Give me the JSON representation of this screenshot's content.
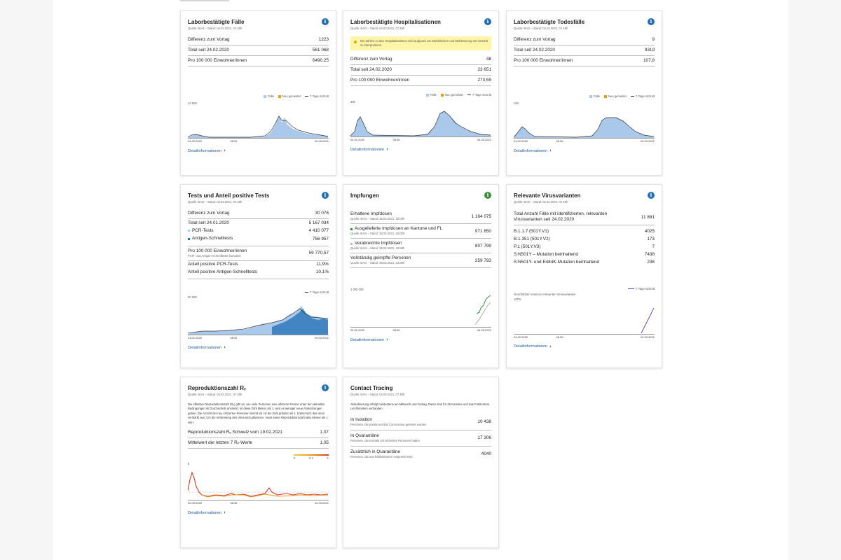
{
  "cards": {
    "cases": {
      "title": "Laborbestätigte Fälle",
      "source": "Quelle: BAG – Stand: 04.03.2021, 07.48h",
      "rows": [
        {
          "label": "Differenz zum Vortag",
          "value": "1223"
        },
        {
          "label": "Total seit 24.02.2020",
          "value": "561 068"
        },
        {
          "label": "Pro 100 000 Einwohner/innen",
          "value": "6490,25"
        }
      ],
      "legend": {
        "a": "Fälle",
        "b": "Neu gemeldet",
        "c": "7-Tage-Schnitt"
      },
      "ymax": "12 000",
      "x_start": "24.02.2020",
      "x_mid": "08.06",
      "x_end": "04.03.2021",
      "link": "Detailinformationen"
    },
    "hosp": {
      "title": "Laborbestätigte Hospitalisationen",
      "source": "Quelle: BAG – Stand: 04.03.2021, 07.48h",
      "notice": "Die Zahlen zu den Hospitalisationen sind aufgrund von Meldelücken und Meldeverzug mit Vorsicht zu interpretieren.",
      "rows": [
        {
          "label": "Differenz zum Vortag",
          "value": "48"
        },
        {
          "label": "Total seit 24.02.2020",
          "value": "23 651"
        },
        {
          "label": "Pro 100 000 Einwohner/innen",
          "value": "273,59"
        }
      ],
      "legend": {
        "a": "Fälle",
        "b": "Neu gemeldet",
        "c": "7-Tage-Schnitt"
      },
      "ymax": "300",
      "x_start": "24.02.2020",
      "x_mid": "08.06",
      "x_end": "04.03.2021",
      "link": "Detailinformationen"
    },
    "deaths": {
      "title": "Laborbestätigte Todesfälle",
      "source": "Quelle: BAG – Stand: 04.03.2021, 07.48h",
      "rows": [
        {
          "label": "Differenz zum Vortag",
          "value": "9"
        },
        {
          "label": "Total seit 24.02.2020",
          "value": "9319"
        },
        {
          "label": "Pro 100 000 Einwohner/innen",
          "value": "107,8"
        }
      ],
      "legend": {
        "a": "Fälle",
        "b": "Neu gemeldet",
        "c": "7-Tage-Schnitt"
      },
      "ymax": "150",
      "x_start": "24.02.2020",
      "x_mid": "08.06",
      "x_end": "04.03.2021",
      "link": "Detailinformationen"
    },
    "tests": {
      "title": "Tests und Anteil positive Tests",
      "source": "Quelle: BAG – Stand: 04.03.2021, 07.48h",
      "diff_label": "Differenz zum Vortag",
      "diff_value": "30 076",
      "total_label": "Total seit 24.01.2020",
      "total_value": "5 167 034",
      "pcr_label": "PCR-Tests",
      "pcr_value": "4 410 077",
      "antigen_label": "Antigen-Schnelltests",
      "antigen_value": "756 957",
      "per100k_label": "Pro 100 000 Einwohner/innen",
      "per100k_value": "59 770,57",
      "per100k_sub": "PCR- und Antigen-Schnelltests kumuliert",
      "pos_pcr_label": "Anteil positive PCR-Tests",
      "pos_pcr_value": "11,9%",
      "pos_ag_label": "Anteil positive Antigen-Schnelltests",
      "pos_ag_value": "10,1%",
      "legend": "7-Tage-Schnitt",
      "ymax": "50 000",
      "x_start": "24.01.2020",
      "x_mid": "08.06",
      "x_end": "04.03.2021",
      "link": "Detailinformationen"
    },
    "vacc": {
      "title": "Impfungen",
      "received_label": "Erhaltene Impfdosen",
      "received_src": "Quelle: BAG – Stand: 28.02.2021, 18.00h",
      "received_value": "1 164 075",
      "delivered_label": "Ausgelieferte Impfdosen an Kantone und FL",
      "delivered_src": "Quelle: BAG – Stand: 28.02.2021, 18.00h",
      "delivered_value": "971 850",
      "administered_label": "Verabreichte Impfdosen",
      "administered_src": "Quelle: BAG – Stand: 28.02.2021, 23.59h",
      "administered_value": "807 799",
      "full_label": "Vollständig geimpfte Personen",
      "full_src": "Quelle: BAG – Stand: 28.02.2021, 23.59h",
      "full_value": "259 793",
      "ymax": "1 000 000",
      "x_start": "24.02.2020",
      "x_mid": "08.06",
      "x_end": "04.03.2021",
      "link": "Detailinformationen"
    },
    "variants": {
      "title": "Relevante Virusvarianten",
      "source": "Quelle: BAG – Stand: 04.03.2021, 07.48h",
      "total_label": "Total Anzahl Fälle mit identifizierten, relevanten Virusvarianten seit 24.02.2020",
      "total_value": "11 881",
      "items": [
        {
          "label": "B.1.1.7 (501Y.V1)",
          "value": "4025"
        },
        {
          "label": "B.1.351 (501Y.V2)",
          "value": "173"
        },
        {
          "label": "P.1 (501Y.V3)",
          "value": "7"
        },
        {
          "label": "S:N501Y – Mutation beinhaltend",
          "value": "7438"
        },
        {
          "label": "S:N501Y- und E484K-Mutation beinhaltend",
          "value": "238"
        }
      ],
      "legend": "7-Tage-Schnitt",
      "chart_label": "Geschätzter Anteil an relevanten Virusvarianten",
      "ymax": "100%",
      "x_start": "24.02.2020",
      "x_mid": "08.06",
      "x_end": "04.03.2021",
      "link": "Detailinformationen"
    },
    "re": {
      "title": "Reproduktionszahl Rₑ",
      "source": "Quelle: BAG – Stand: 04.03.2021, 07.48h",
      "paragraph": "Die effektive Reproduktionszahl (Rₑ) gibt an, wie viele Personen eine infizierte Person unter den aktuellen Bedingungen im Durchschnitt ansteckt. Ist diese Zahl kleiner als 1, wird es weniger neue Ansteckungen geben. Die Anzahl der neu infizierten Personen nimmt ab. Ist die Zahl grösser als 1, breitet sich das Virus verstärkt aus. Um die Verbreitung des Virus einzudämmen, muss seine Reproduktionszahl also kleiner als 1 sein.",
      "rows": [
        {
          "label": "Reproduktionszahl Rₑ Schweiz vom 19.02.2021",
          "value": "1,07"
        },
        {
          "label": "Mittelwert der letzten 7 Rₑ-Werte",
          "value": "1,05"
        }
      ],
      "scale_min": "0",
      "scale_max": "0,1",
      "scale_top": "1",
      "ymax": "5",
      "x_start": "09.03.2020",
      "x_mid": "08.06",
      "x_end": "04.03.2021",
      "link": "Detailinformationen"
    },
    "tracing": {
      "title": "Contact Tracing",
      "source": "Quelle: BAG – Stand: 04.03.2021, 07.48h",
      "paragraph": "Aktualisierung erfolgt mindestens am Mittwoch und Freitag. Daten sind für 26 Kantone und das Fürstentum Liechtenstein vorhanden.",
      "rows": [
        {
          "label": "In Isolation",
          "sub": "Personen, die positiv auf das Coronavirus getestet wurden",
          "value": "10 438"
        },
        {
          "label": "In Quarantäne",
          "sub": "Personen, die Kontakt mit infizierten Personen hatten",
          "value": "17 306"
        },
        {
          "label": "Zusätzlich in Quarantäne",
          "sub": "Personen, die aus Risikoländern eingereist sind",
          "value": "4040"
        }
      ]
    }
  },
  "colors": {
    "accent": "#1f6fb5",
    "bar": "#a9c8ea",
    "line": "#333333",
    "orange": "#e89b1a",
    "green": "#3a8d3a",
    "purple": "#6a4fb3",
    "red": "#d93a2b"
  }
}
